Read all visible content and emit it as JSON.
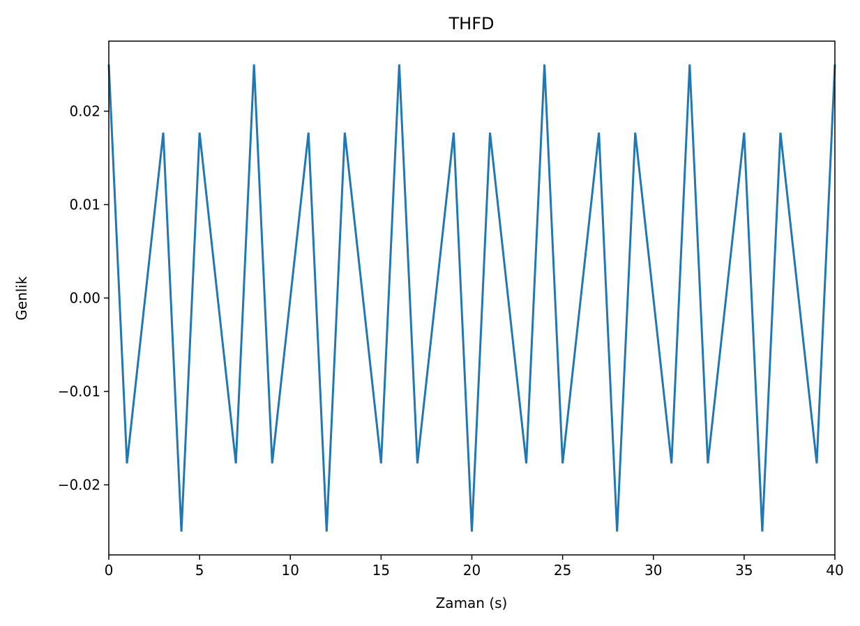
{
  "chart_data": {
    "type": "line",
    "title": "THFD",
    "xlabel": "Zaman (s)",
    "ylabel": "Genlik",
    "xlim": [
      0,
      40
    ],
    "ylim": [
      -0.0275,
      0.0275
    ],
    "grid": false,
    "legend": "none",
    "x_ticks": [
      0,
      5,
      10,
      15,
      20,
      25,
      30,
      35,
      40
    ],
    "x_tick_labels": [
      "0",
      "5",
      "10",
      "15",
      "20",
      "25",
      "30",
      "35",
      "40"
    ],
    "y_ticks": [
      -0.02,
      -0.01,
      0.0,
      0.01,
      0.02
    ],
    "y_tick_labels": [
      "−0.02",
      "−0.01",
      "0.00",
      "0.01",
      "0.02"
    ],
    "series": [
      {
        "color": "#1f77b4",
        "x": [
          0,
          1,
          2,
          3,
          4,
          5,
          6,
          7,
          8,
          9,
          10,
          11,
          12,
          13,
          14,
          15,
          16,
          17,
          18,
          19,
          20,
          21,
          22,
          23,
          24,
          25,
          26,
          27,
          28,
          29,
          30,
          31,
          32,
          33,
          34,
          35,
          36,
          37,
          38,
          39,
          40
        ],
        "y": [
          0.025,
          -0.0177,
          0,
          0.0177,
          -0.025,
          0.0177,
          0,
          -0.0177,
          0.025,
          -0.0177,
          0,
          0.0177,
          -0.025,
          0.0177,
          0,
          -0.0177,
          0.025,
          -0.0177,
          0,
          0.0177,
          -0.025,
          0.0177,
          0,
          -0.0177,
          0.025,
          -0.0177,
          0,
          0.0177,
          -0.025,
          0.0177,
          0,
          -0.0177,
          0.025,
          -0.0177,
          0,
          0.0177,
          -0.025,
          0.0177,
          0,
          -0.0177,
          0.025
        ]
      }
    ]
  }
}
